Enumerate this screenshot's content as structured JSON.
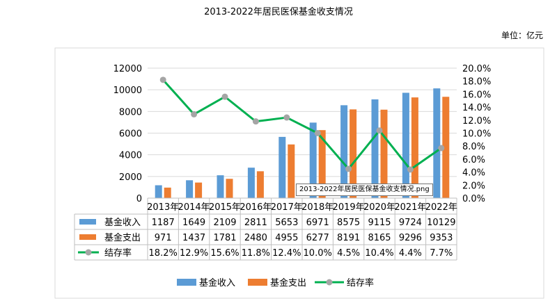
{
  "title": "2013-2022年居民医保基金收支情况",
  "unit": "单位：亿元",
  "tooltip": "2013-2022年居民医保基金收支情况.png",
  "colors": {
    "income": "#5b9bd5",
    "expense": "#ed7d31",
    "rate_line": "#00b050",
    "rate_marker": "#a5a5a5"
  },
  "chart_data": {
    "type": "bar",
    "categories": [
      "2013年",
      "2014年",
      "2015年",
      "2016年",
      "2017年",
      "2018年",
      "2019年",
      "2020年",
      "2021年",
      "2022年"
    ],
    "series": [
      {
        "name": "基金收入",
        "values": [
          1187,
          1649,
          2109,
          2811,
          5653,
          6971,
          8575,
          9115,
          9724,
          10129
        ]
      },
      {
        "name": "基金支出",
        "values": [
          971,
          1437,
          1781,
          2480,
          4955,
          6277,
          8191,
          8165,
          9296,
          9353
        ]
      }
    ],
    "line_series": {
      "name": "结存率",
      "values": [
        18.2,
        12.9,
        15.6,
        11.8,
        12.4,
        10.0,
        4.5,
        10.4,
        4.4,
        7.7
      ],
      "labels": [
        "18.2%",
        "12.9%",
        "15.6%",
        "11.8%",
        "12.4%",
        "10.0%",
        "4.5%",
        "10.4%",
        "4.4%",
        "7.7%"
      ]
    },
    "ylim": [
      0,
      12000
    ],
    "y_ticks": [
      "0",
      "2000",
      "4000",
      "6000",
      "8000",
      "10000",
      "12000"
    ],
    "y2lim": [
      0,
      20
    ],
    "y2_ticks": [
      "0.0%",
      "2.0%",
      "4.0%",
      "6.0%",
      "8.0%",
      "10.0%",
      "12.0%",
      "14.0%",
      "16.0%",
      "18.0%",
      "20.0%"
    ],
    "legend": [
      "基金收入",
      "基金支出",
      "结存率"
    ]
  }
}
